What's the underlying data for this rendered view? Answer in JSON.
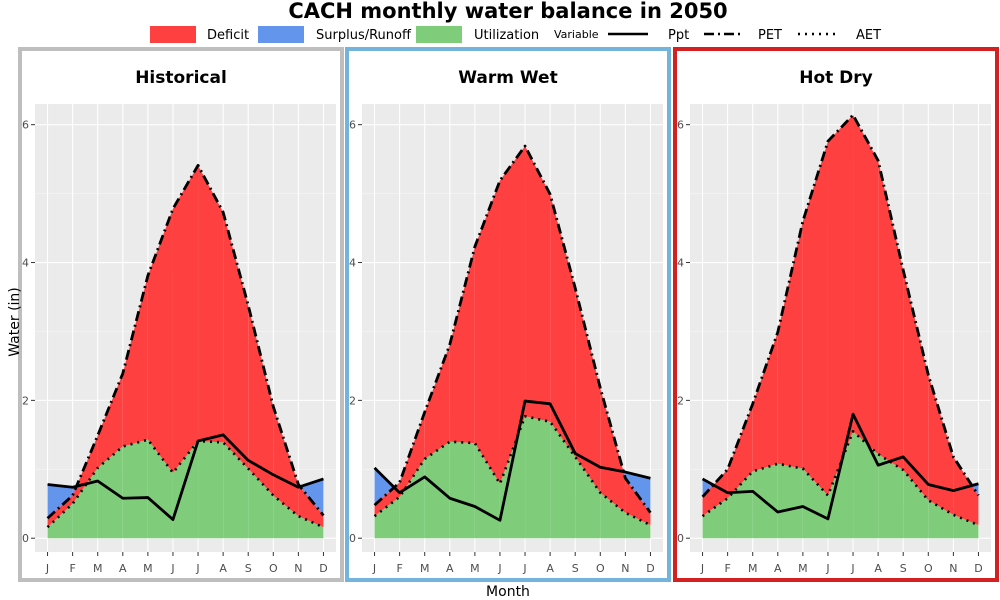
{
  "chart_data": {
    "type": "area",
    "title": "CACH monthly water balance in 2050",
    "xlabel": "Month",
    "ylabel": "Water (in)",
    "ylim": [
      -0.2,
      6.3
    ],
    "yticks": [
      0,
      2,
      4,
      6
    ],
    "categories": [
      "J",
      "F",
      "M",
      "A",
      "M",
      "J",
      "J",
      "A",
      "S",
      "O",
      "N",
      "D"
    ],
    "legend": {
      "position": "top",
      "fill_entries": [
        {
          "label": "Deficit",
          "color": "#ff4040"
        },
        {
          "label": "Surplus/Runoff",
          "color": "#6495ed"
        },
        {
          "label": "Utilization",
          "color": "#7fcd7b"
        }
      ],
      "line_title": "Variable",
      "line_entries": [
        {
          "label": "Ppt",
          "style": "solid"
        },
        {
          "label": "PET",
          "style": "dashdot"
        },
        {
          "label": "AET",
          "style": "dotted"
        }
      ]
    },
    "panels": [
      {
        "name": "Historical",
        "border_color": "#bebebe",
        "ppt": [
          0.78,
          0.74,
          0.83,
          0.58,
          0.59,
          0.27,
          1.41,
          1.5,
          1.13,
          0.92,
          0.74,
          0.86
        ],
        "pet": [
          0.29,
          0.62,
          1.49,
          2.39,
          3.81,
          4.78,
          5.41,
          4.73,
          3.38,
          1.91,
          0.78,
          0.33
        ],
        "aet": [
          0.16,
          0.5,
          1.02,
          1.33,
          1.43,
          0.95,
          1.41,
          1.39,
          1.01,
          0.62,
          0.32,
          0.16
        ]
      },
      {
        "name": "Warm Wet",
        "border_color": "#74b4dc",
        "ppt": [
          1.02,
          0.66,
          0.89,
          0.58,
          0.46,
          0.26,
          1.99,
          1.95,
          1.23,
          1.03,
          0.96,
          0.87
        ],
        "pet": [
          0.48,
          0.81,
          1.83,
          2.81,
          4.23,
          5.19,
          5.69,
          4.99,
          3.63,
          2.18,
          0.87,
          0.37
        ],
        "aet": [
          0.32,
          0.6,
          1.15,
          1.4,
          1.38,
          0.79,
          1.77,
          1.69,
          1.18,
          0.66,
          0.37,
          0.19
        ]
      },
      {
        "name": "Hot Dry",
        "border_color": "#d42020",
        "ppt": [
          0.86,
          0.66,
          0.68,
          0.38,
          0.46,
          0.28,
          1.8,
          1.06,
          1.18,
          0.78,
          0.69,
          0.79
        ],
        "pet": [
          0.6,
          1.0,
          1.95,
          2.99,
          4.6,
          5.76,
          6.14,
          5.48,
          3.89,
          2.37,
          1.18,
          0.62
        ],
        "aet": [
          0.32,
          0.58,
          0.97,
          1.08,
          1.01,
          0.62,
          1.55,
          1.22,
          0.99,
          0.55,
          0.34,
          0.19
        ]
      }
    ]
  }
}
